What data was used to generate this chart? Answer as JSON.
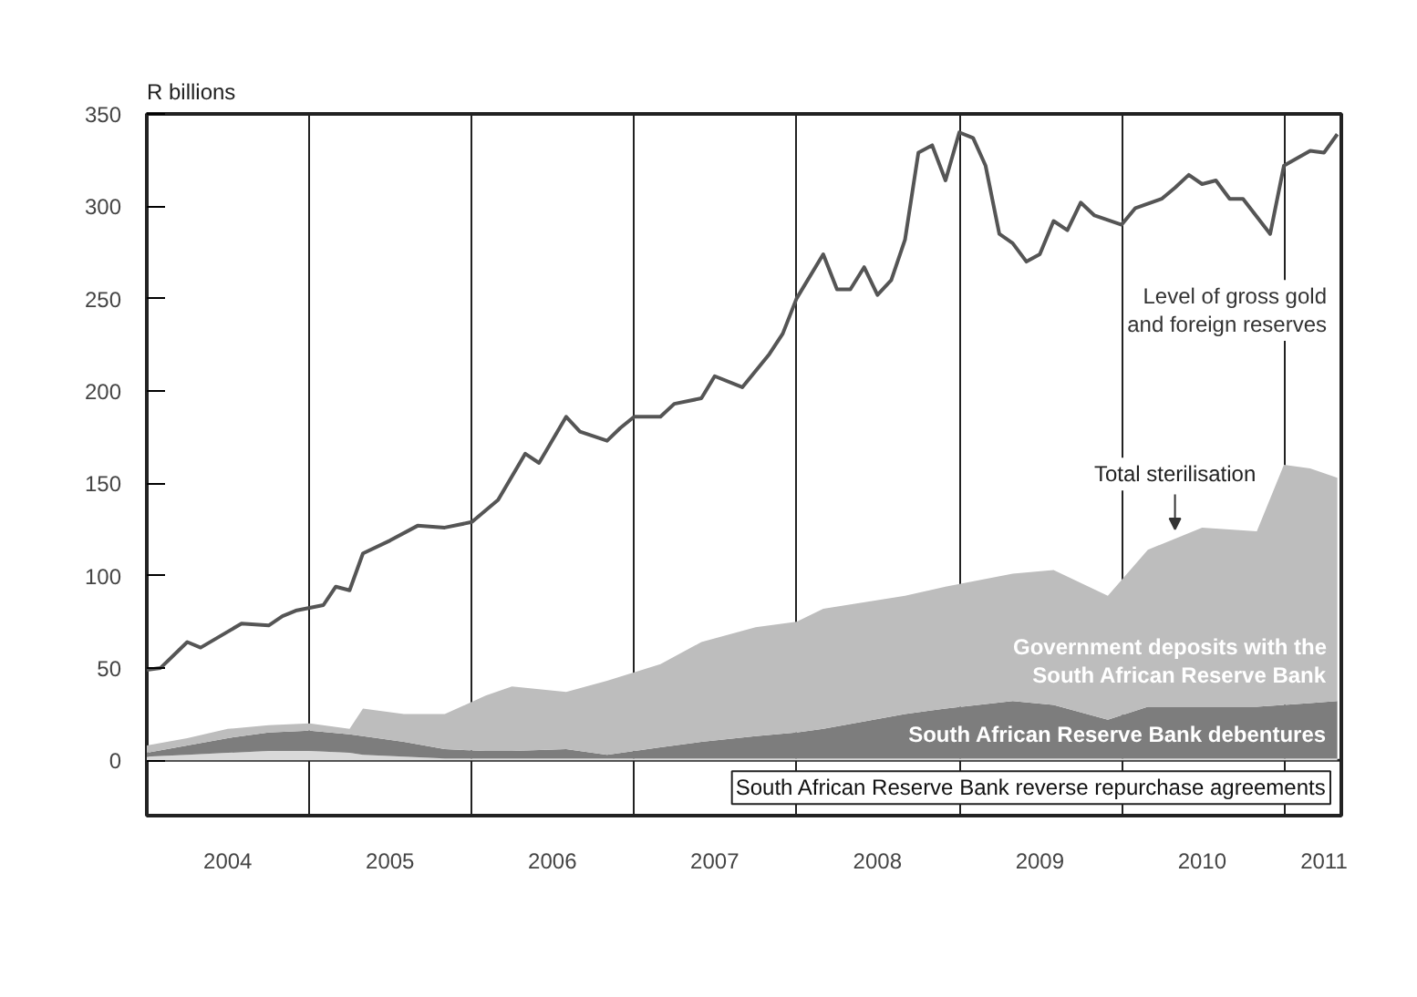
{
  "chart_data": {
    "type": "area",
    "stacked": true,
    "ylabel": "R billions",
    "ylim": [
      -30,
      350
    ],
    "yticks": [
      0,
      50,
      100,
      150,
      200,
      250,
      300,
      350
    ],
    "xlim": [
      "2004-01-01",
      "2011-05-10"
    ],
    "xticks": [
      {
        "value": "2004-07-01",
        "label": "2004"
      },
      {
        "value": "2005-07-01",
        "label": "2005"
      },
      {
        "value": "2006-07-01",
        "label": "2006"
      },
      {
        "value": "2007-07-01",
        "label": "2007"
      },
      {
        "value": "2008-07-01",
        "label": "2008"
      },
      {
        "value": "2009-07-01",
        "label": "2009"
      },
      {
        "value": "2010-07-01",
        "label": "2010"
      },
      {
        "value": "2011-04-01",
        "label": "2011"
      },
      {
        "value": "2005-01-01",
        "label": null
      },
      {
        "value": "2006-01-01",
        "label": null
      },
      {
        "value": "2007-01-01",
        "label": null
      },
      {
        "value": "2008-01-01",
        "label": null
      },
      {
        "value": "2009-01-01",
        "label": null
      },
      {
        "value": "2010-01-01",
        "label": null
      },
      {
        "value": "2011-01-01",
        "label": null
      }
    ],
    "grid": "x",
    "x": [
      "2004-01",
      "2004-04",
      "2004-07",
      "2004-10",
      "2005-01",
      "2005-04",
      "2005-05",
      "2005-08",
      "2005-11",
      "2006-02",
      "2006-04",
      "2006-08",
      "2006-11",
      "2007-03",
      "2007-06",
      "2007-10",
      "2008-01",
      "2008-03",
      "2008-09",
      "2008-12",
      "2009-05",
      "2009-08",
      "2009-12",
      "2010-03",
      "2010-07",
      "2010-11",
      "2011-01",
      "2011-03",
      "2011-05"
    ],
    "series": [
      {
        "name": "Level of gross gold\nand foreign reserves",
        "type": "line",
        "color": "#555555",
        "x": [
          "2004-01",
          "2004-02",
          "2004-04",
          "2004-05",
          "2004-08",
          "2004-10",
          "2004-11",
          "2004-12",
          "2005-02",
          "2005-03",
          "2005-04",
          "2005-05",
          "2005-07",
          "2005-09",
          "2005-11",
          "2006-01",
          "2006-03",
          "2006-05",
          "2006-06",
          "2006-08",
          "2006-09",
          "2006-11",
          "2006-12",
          "2007-01",
          "2007-03",
          "2007-04",
          "2007-06",
          "2007-07",
          "2007-09",
          "2007-11",
          "2007-12",
          "2008-01",
          "2008-03",
          "2008-04",
          "2008-05",
          "2008-06",
          "2008-07",
          "2008-08",
          "2008-09",
          "2008-10",
          "2008-11",
          "2008-12",
          "2009-01",
          "2009-02",
          "2009-03",
          "2009-04",
          "2009-05",
          "2009-06",
          "2009-07",
          "2009-08",
          "2009-09",
          "2009-10",
          "2009-11",
          "2010-01",
          "2010-02",
          "2010-04",
          "2010-05",
          "2010-06",
          "2010-07",
          "2010-08",
          "2010-09",
          "2010-10",
          "2010-12",
          "2011-01",
          "2011-03",
          "2011-04",
          "2011-05"
        ],
        "values": [
          49,
          50,
          64,
          61,
          74,
          73,
          78,
          81,
          84,
          94,
          92,
          112,
          119,
          127,
          126,
          129,
          141,
          166,
          161,
          186,
          178,
          173,
          180,
          186,
          186,
          193,
          196,
          208,
          202,
          220,
          231,
          250,
          274,
          255,
          255,
          267,
          252,
          260,
          282,
          329,
          333,
          314,
          340,
          337,
          322,
          285,
          280,
          270,
          274,
          292,
          287,
          302,
          295,
          290,
          299,
          304,
          310,
          317,
          312,
          314,
          304,
          304,
          285,
          322,
          330,
          329,
          339
        ]
      },
      {
        "name": "South African Reserve Bank reverse repurchase agreements",
        "color": "#d9d9d9",
        "values": [
          2,
          3,
          4,
          5,
          5,
          4,
          3,
          2,
          1,
          1,
          1,
          1,
          1,
          1,
          1,
          1,
          1,
          1,
          1,
          1,
          1,
          1,
          1,
          1,
          1,
          1,
          1,
          1,
          1
        ]
      },
      {
        "name": "South African Reserve Bank debentures",
        "color": "#7d7d7d",
        "values": [
          2,
          5,
          8,
          10,
          11,
          10,
          10,
          8,
          5,
          4,
          4,
          5,
          2,
          6,
          9,
          12,
          14,
          16,
          24,
          27,
          31,
          29,
          21,
          28,
          28,
          28,
          29,
          30,
          31
        ]
      },
      {
        "name": "Government deposits with the\nSouth African Reserve Bank",
        "color": "#bdbdbd",
        "values": [
          4,
          4,
          5,
          4,
          4,
          3,
          15,
          15,
          19,
          30,
          35,
          31,
          40,
          45,
          54,
          59,
          60,
          65,
          64,
          66,
          69,
          73,
          67,
          85,
          97,
          95,
          130,
          127,
          121
        ]
      }
    ],
    "annotations": [
      {
        "text": "Total sterilisation",
        "x": "2010-05",
        "y": 122
      }
    ]
  }
}
